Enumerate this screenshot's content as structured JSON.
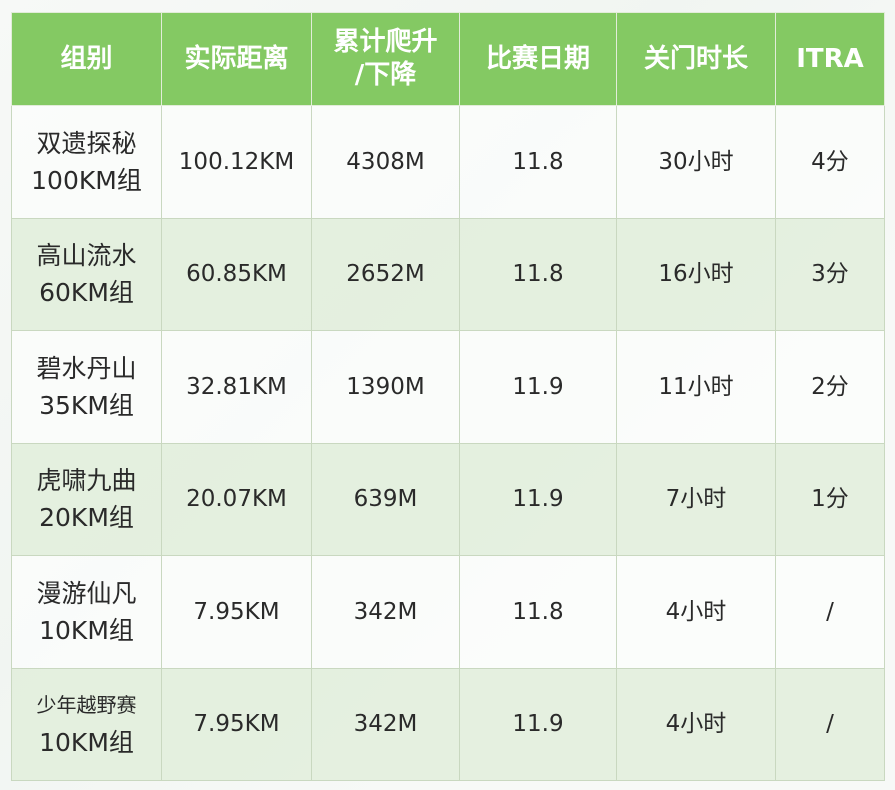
{
  "table": {
    "headers": [
      {
        "line1": "组别",
        "line2": ""
      },
      {
        "line1": "实际距离",
        "line2": ""
      },
      {
        "line1": "累计爬升",
        "line2": "/下降"
      },
      {
        "line1": "比赛日期",
        "line2": ""
      },
      {
        "line1": "关门时长",
        "line2": ""
      },
      {
        "line1": "ITRA",
        "line2": ""
      }
    ],
    "rows": [
      {
        "group_name": "双遗探秘",
        "group_type": "100KM组",
        "distance": "100.12KM",
        "elevation": "4308M",
        "date": "11.8",
        "cutoff": "30小时",
        "itra": "4分"
      },
      {
        "group_name": "高山流水",
        "group_type": "60KM组",
        "distance": "60.85KM",
        "elevation": "2652M",
        "date": "11.8",
        "cutoff": "16小时",
        "itra": "3分"
      },
      {
        "group_name": "碧水丹山",
        "group_type": "35KM组",
        "distance": "32.81KM",
        "elevation": "1390M",
        "date": "11.9",
        "cutoff": "11小时",
        "itra": "2分"
      },
      {
        "group_name": "虎啸九曲",
        "group_type": "20KM组",
        "distance": "20.07KM",
        "elevation": "639M",
        "date": "11.9",
        "cutoff": "7小时",
        "itra": "1分"
      },
      {
        "group_name": "漫游仙凡",
        "group_type": "10KM组",
        "distance": "7.95KM",
        "elevation": "342M",
        "date": "11.8",
        "cutoff": "4小时",
        "itra": "/"
      },
      {
        "group_name": "少年越野赛",
        "group_type": "10KM组",
        "distance": "7.95KM",
        "elevation": "342M",
        "date": "11.9",
        "cutoff": "4小时",
        "itra": "/"
      }
    ]
  },
  "colors": {
    "header_bg": "#84c963",
    "header_text": "#ffffff",
    "row_odd_bg": "#fcfdfc",
    "row_even_bg": "#e1eedb",
    "border": "#c9d8c0"
  }
}
